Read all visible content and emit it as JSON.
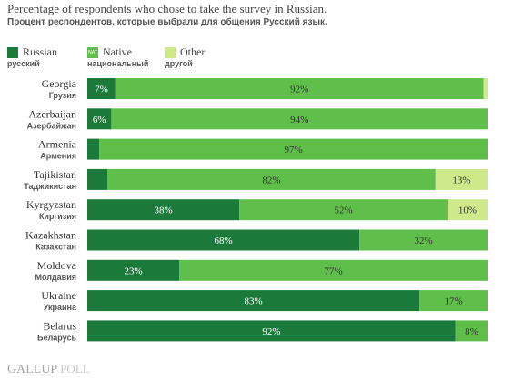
{
  "title": "Percentage of respondents who chose to take the survey in Russian.",
  "subtitle": "Процент респондентов, которые выбрали для общения Русский язык.",
  "legend": [
    {
      "label": "Russian",
      "label_ru": "русский",
      "color": "#1b7a3a"
    },
    {
      "label": "Native",
      "label_ru": "национальный",
      "color": "#5fbf4a",
      "mark": "NAT"
    },
    {
      "label": "Other",
      "label_ru": "другой",
      "color": "#cde98a"
    }
  ],
  "logo": {
    "name": "GALLUP",
    "suffix": "POLL"
  },
  "colors": {
    "russian": "#1b7a3a",
    "native": "#5fbf4a",
    "other": "#cde98a"
  },
  "chart_data": {
    "type": "bar",
    "orientation": "horizontal",
    "stacked": true,
    "title": "Percentage of respondents who chose to take the survey in Russian.",
    "xlim": [
      0,
      100
    ],
    "grid": false,
    "legend_position": "top-left",
    "categories": [
      "Georgia",
      "Azerbaijan",
      "Armenia",
      "Tajikistan",
      "Kyrgyzstan",
      "Kazakhstan",
      "Moldova",
      "Ukraine",
      "Belarus"
    ],
    "categories_ru": [
      "Грузия",
      "Азербайжан",
      "Армения",
      "Таджикистан",
      "Киргизия",
      "Казахстан",
      "Молдавия",
      "Украина",
      "Беларусь"
    ],
    "series": [
      {
        "name": "Russian",
        "color": "#1b7a3a",
        "values": [
          7,
          6,
          3,
          5,
          38,
          68,
          23,
          83,
          92
        ],
        "labels": [
          "7%",
          "6%",
          "",
          "",
          "38%",
          "68%",
          "23%",
          "83%",
          "92%"
        ]
      },
      {
        "name": "Native",
        "color": "#5fbf4a",
        "values": [
          92,
          94,
          97,
          82,
          52,
          32,
          77,
          17,
          8
        ],
        "labels": [
          "92%",
          "94%",
          "97%",
          "82%",
          "52%",
          "32%",
          "77%",
          "17%",
          "8%"
        ]
      },
      {
        "name": "Other",
        "color": "#cde98a",
        "values": [
          1,
          0,
          0,
          13,
          10,
          0,
          0,
          0,
          0
        ],
        "labels": [
          "",
          "",
          "",
          "13%",
          "10%",
          "",
          "",
          "",
          ""
        ]
      }
    ]
  }
}
